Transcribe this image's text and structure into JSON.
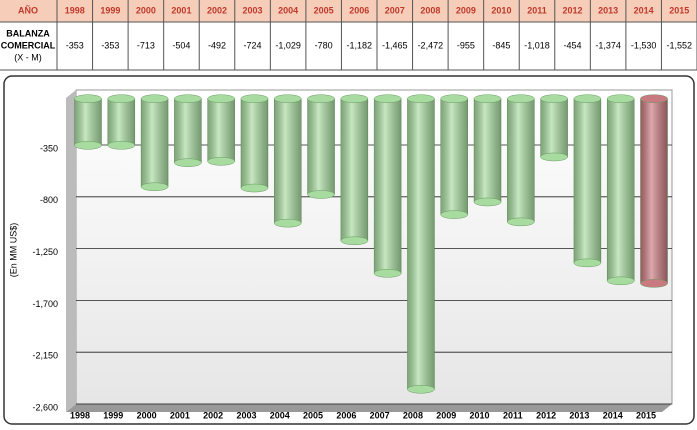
{
  "table": {
    "header_label": "AÑO",
    "row_label": [
      "BALANZA",
      "COMERCIAL",
      "(X - M)"
    ]
  },
  "chart_data": {
    "type": "bar",
    "y_label": "(En MM US$)",
    "categories": [
      "1998",
      "1999",
      "2000",
      "2001",
      "2002",
      "2003",
      "2004",
      "2005",
      "2006",
      "2007",
      "2008",
      "2009",
      "2010",
      "2011",
      "2012",
      "2013",
      "2014",
      "2015"
    ],
    "values": [
      -353,
      -353,
      -713,
      -504,
      -492,
      -724,
      -1029,
      -780,
      -1182,
      -1465,
      -2472,
      -955,
      -845,
      -1018,
      -454,
      -1374,
      -1530,
      -1552
    ],
    "value_labels": [
      "-353",
      "-353",
      "-713",
      "-504",
      "-492",
      "-724",
      "-1,029",
      "-780",
      "-1,182",
      "-1,465",
      "-2,472",
      "-955",
      "-845",
      "-1,018",
      "-454",
      "-1,374",
      "-1,530",
      "-1,552"
    ],
    "colors": [
      "#a8dba0",
      "#a8dba0",
      "#a8dba0",
      "#a8dba0",
      "#a8dba0",
      "#a8dba0",
      "#a8dba0",
      "#a8dba0",
      "#a8dba0",
      "#a8dba0",
      "#a8dba0",
      "#a8dba0",
      "#a8dba0",
      "#a8dba0",
      "#a8dba0",
      "#a8dba0",
      "#a8dba0",
      "#c97a80"
    ],
    "ylim": [
      -2600,
      0
    ],
    "yticks": [
      -350,
      -800,
      {
        "value": -1250,
        "label": "-1,250"
      },
      {
        "value": -1700,
        "label": "-1,700"
      },
      {
        "value": -2150,
        "label": "-2,150"
      },
      {
        "value": -2600,
        "label": "-2,600"
      }
    ],
    "grid": true
  }
}
